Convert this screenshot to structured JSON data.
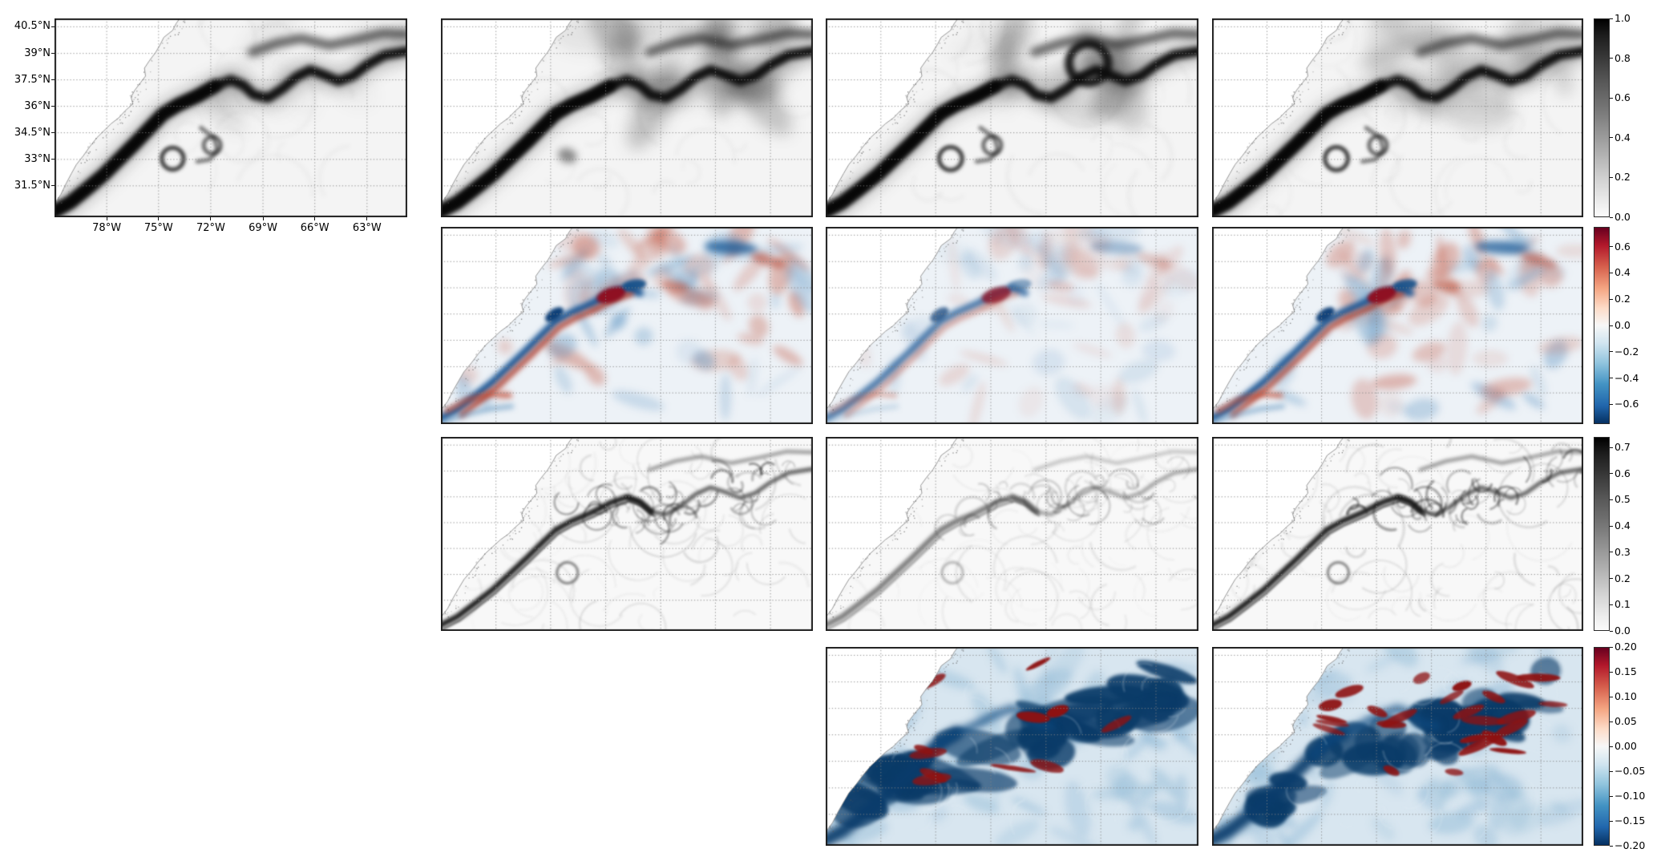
{
  "meta": {
    "figure_type": "Multi-panel geophysical heatmap figure (matplotlib style)",
    "region": "Gulf Stream / U.S. East Coast, Northwest Atlantic",
    "background": "#ffffff"
  },
  "axes": {
    "y_tick_labels": [
      "40.5°N",
      "39°N",
      "37.5°N",
      "36°N",
      "34.5°N",
      "33°N",
      "31.5°N"
    ],
    "x_tick_labels": [
      "78°W",
      "75°W",
      "72°W",
      "69°W",
      "66°W",
      "63°W"
    ]
  },
  "chart_data": {
    "type": "heatmap",
    "layout": "4-row by 4-column grid with 12 populated map panels; only top-left panel has latitude/longitude tick labels; four vertical colorbars on the right edge, one per row; all panels share the same geographic extent with dotted graticule lines and the U.S. East Coast coastline in the upper left",
    "x_tick_labels": [
      "78°W",
      "75°W",
      "72°W",
      "69°W",
      "66°W",
      "63°W"
    ],
    "y_tick_labels": [
      "40.5°N",
      "39°N",
      "37.5°N",
      "36°N",
      "34.5°N",
      "33°N",
      "31.5°N"
    ],
    "colorbars": [
      {
        "row": 1,
        "colormap": "Greys",
        "range": [
          0.0,
          1.0
        ],
        "tick_labels": [
          "1.0",
          "0.8",
          "0.6",
          "0.4",
          "0.2",
          "0.0"
        ],
        "tick_values": [
          1.0,
          0.8,
          0.6,
          0.4,
          0.2,
          0.0
        ]
      },
      {
        "row": 2,
        "colormap": "RdBu_r",
        "range": [
          -0.75,
          0.75
        ],
        "tick_labels": [
          "0.6",
          "0.4",
          "0.2",
          "0.0",
          "−0.2",
          "−0.4",
          "−0.6"
        ],
        "tick_values": [
          0.6,
          0.4,
          0.2,
          0.0,
          -0.2,
          -0.4,
          -0.6
        ]
      },
      {
        "row": 3,
        "colormap": "Greys",
        "range": [
          0.0,
          0.74
        ],
        "tick_labels": [
          "0.7",
          "0.6",
          "0.5",
          "0.4",
          "0.3",
          "0.2",
          "0.1",
          "0.0"
        ],
        "tick_values": [
          0.7,
          0.6,
          0.5,
          0.4,
          0.3,
          0.2,
          0.1,
          0.0
        ]
      },
      {
        "row": 4,
        "colormap": "RdBu_r",
        "range": [
          -0.2,
          0.2
        ],
        "tick_labels": [
          "0.20",
          "0.15",
          "0.10",
          "0.05",
          "0.00",
          "−0.05",
          "−0.10",
          "−0.15",
          "−0.20"
        ],
        "tick_values": [
          0.2,
          0.15,
          0.1,
          0.05,
          0.0,
          -0.05,
          -0.1,
          -0.15,
          -0.2
        ]
      }
    ],
    "panels": [
      {
        "id": "r1c1",
        "row": 1,
        "col": 1,
        "colormap": "Greys",
        "value_range": [
          0.0,
          1.0
        ],
        "has_axis_labels": true,
        "description": "Sharp dark Gulf Stream front from southwest corner along the coast then meandering east; two cyclonic ring eddies south of the front; second dark band along the top right",
        "style": {
          "kind": "gray_jet",
          "seed": 11,
          "fuzz": 0.12,
          "rings": true,
          "loop": false
        }
      },
      {
        "id": "r1c2",
        "row": 1,
        "col": 2,
        "colormap": "Greys",
        "value_range": [
          0.0,
          1.0
        ],
        "has_axis_labels": false,
        "description": "Same front but smoother with diffuse gray smudges over the northeast half",
        "style": {
          "kind": "gray_jet",
          "seed": 22,
          "fuzz": 0.42,
          "rings": false,
          "loop": false
        }
      },
      {
        "id": "r1c3",
        "row": 1,
        "col": 3,
        "colormap": "Greys",
        "value_range": [
          0.0,
          1.0
        ],
        "has_axis_labels": false,
        "description": "Front with a large dark meander loop in the northeast quadrant and a spiral eddy south of the front",
        "style": {
          "kind": "gray_jet",
          "seed": 33,
          "fuzz": 0.3,
          "rings": true,
          "loop": true
        }
      },
      {
        "id": "r1c4",
        "row": 1,
        "col": 4,
        "colormap": "Greys",
        "value_range": [
          0.0,
          1.0
        ],
        "has_axis_labels": false,
        "description": "Sharp front variant with strong meanders and moderate diffuse texture northeast",
        "style": {
          "kind": "gray_jet",
          "seed": 44,
          "fuzz": 0.26,
          "rings": true,
          "loop": false
        }
      },
      {
        "id": "r2c2",
        "row": 2,
        "col": 2,
        "colormap": "RdBu_r",
        "value_range": [
          -0.75,
          0.75
        ],
        "has_axis_labels": false,
        "description": "Red-blue difference field: strong blue/red dipole band along the separated jet, dark red oval near panel center, mixed red and blue patches northeast",
        "style": {
          "kind": "rdbu_diff",
          "seed": 55,
          "amplitude": 1.0
        }
      },
      {
        "id": "r2c3",
        "row": 2,
        "col": 3,
        "colormap": "RdBu_r",
        "value_range": [
          -0.75,
          0.75
        ],
        "has_axis_labels": false,
        "description": "Weaker, paler difference field with a short blue/red dipole near the separation point",
        "style": {
          "kind": "rdbu_diff",
          "seed": 66,
          "amplitude": 0.45
        }
      },
      {
        "id": "r2c4",
        "row": 2,
        "col": 4,
        "colormap": "RdBu_r",
        "value_range": [
          -0.75,
          0.75
        ],
        "has_axis_labels": false,
        "description": "Difference field similar to the first, strong dipole along the jet with dark red blob",
        "style": {
          "kind": "rdbu_diff",
          "seed": 77,
          "amplitude": 0.95
        }
      },
      {
        "id": "r3c2",
        "row": 3,
        "col": 2,
        "colormap": "Greys",
        "value_range": [
          0.0,
          0.74
        ],
        "has_axis_labels": false,
        "description": "Gray filamentary magnitude field: dark double-edged band along the jet with marbled swirl filaments to the northeast",
        "style": {
          "kind": "gray_filaments",
          "seed": 88,
          "amplitude": 1.0
        }
      },
      {
        "id": "r3c3",
        "row": 3,
        "col": 3,
        "colormap": "Greys",
        "value_range": [
          0.0,
          0.74
        ],
        "has_axis_labels": false,
        "description": "Weaker gray filamentary field, fainter swirls",
        "style": {
          "kind": "gray_filaments",
          "seed": 99,
          "amplitude": 0.55
        }
      },
      {
        "id": "r3c4",
        "row": 3,
        "col": 4,
        "colormap": "Greys",
        "value_range": [
          0.0,
          0.74
        ],
        "has_axis_labels": false,
        "description": "Strong gray filamentary field along the jet and eddy region",
        "style": {
          "kind": "gray_filaments",
          "seed": 111,
          "amplitude": 1.0
        }
      },
      {
        "id": "r4c3",
        "row": 4,
        "col": 3,
        "colormap": "RdBu_r",
        "value_range": [
          -0.2,
          0.2
        ],
        "has_axis_labels": false,
        "description": "Saturated difference field: dense dark navy patches covering the jet and eddy band with scattered elongated dark red streaks on a pale blue background",
        "style": {
          "kind": "rdbu_dense",
          "seed": 121,
          "red_streaks": 13,
          "frag": false
        }
      },
      {
        "id": "r4c4",
        "row": 4,
        "col": 4,
        "colormap": "RdBu_r",
        "value_range": [
          -0.2,
          0.2
        ],
        "has_axis_labels": false,
        "description": "Saturated difference field, more fragmented, with many interleaved dark red and dark blue streaks",
        "style": {
          "kind": "rdbu_dense",
          "seed": 131,
          "red_streaks": 26,
          "frag": true
        }
      }
    ]
  }
}
